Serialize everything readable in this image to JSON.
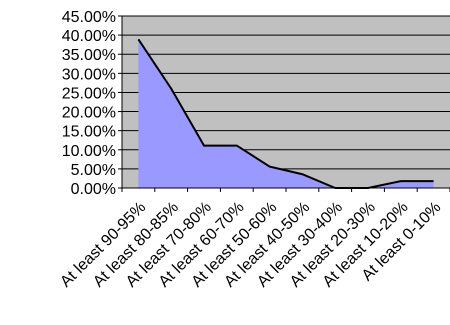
{
  "chart_data": {
    "type": "area",
    "categories": [
      "At least 90-95%",
      "At least 80-85%",
      "At least 70-80%",
      "At least 60-70%",
      "At least 50-60%",
      "At least 40-50%",
      "At least 30-40%",
      "At least 20-30%",
      "At least 10-20%",
      "At least 0-10%"
    ],
    "values": [
      38.9,
      26.0,
      11.1,
      11.1,
      5.6,
      3.6,
      0.0,
      0.0,
      1.8,
      1.8
    ],
    "ylim": [
      0,
      45
    ],
    "y_ticks": [
      0,
      5,
      10,
      15,
      20,
      25,
      30,
      35,
      40,
      45
    ],
    "y_tick_labels": [
      "0.00%",
      "5.00%",
      "10.00%",
      "15.00%",
      "20.00%",
      "25.00%",
      "30.00%",
      "35.00%",
      "40.00%",
      "45.00%"
    ],
    "title": "",
    "xlabel": "",
    "ylabel": "",
    "grid": true,
    "legend": "none",
    "colors": {
      "plot_background": "#c0c0c0",
      "area_fill": "#9999ff",
      "line": "#000000",
      "gridline": "#000000"
    }
  }
}
